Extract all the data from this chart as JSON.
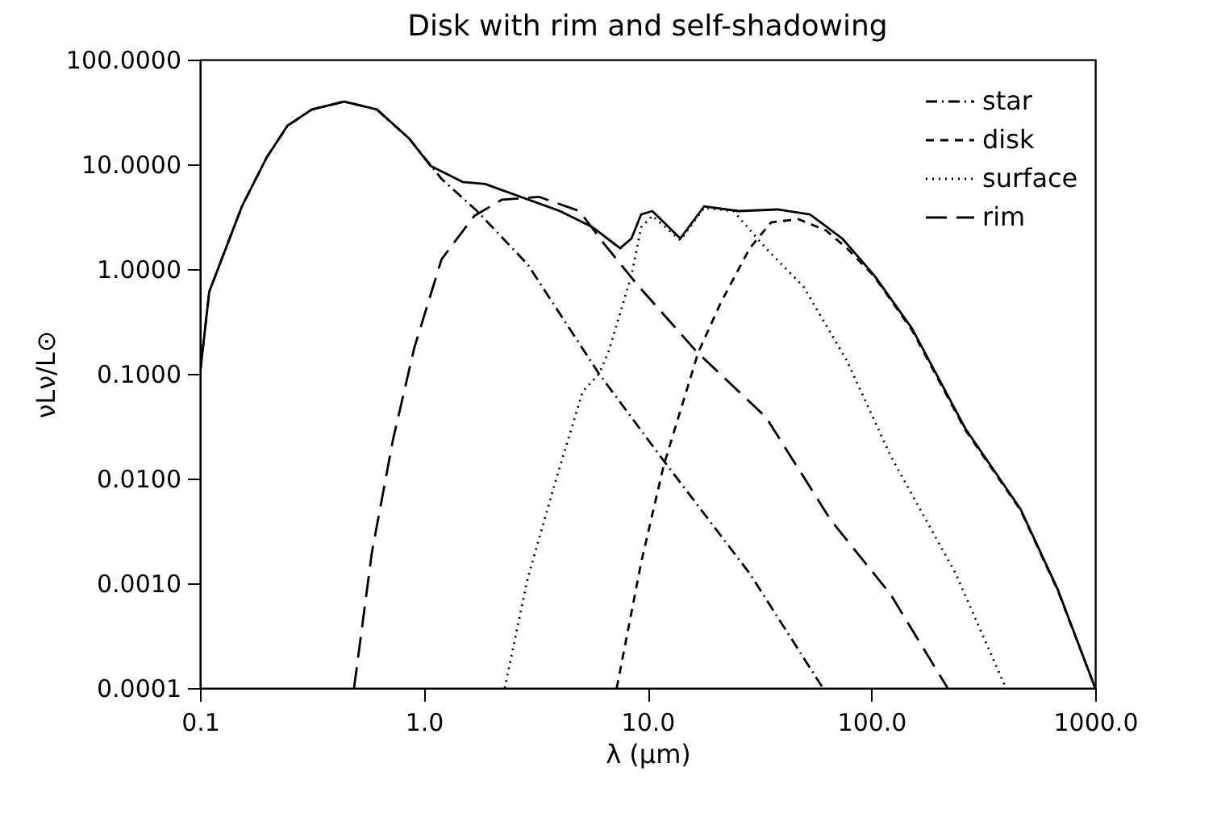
{
  "chart_data": {
    "type": "line",
    "title": "Disk with rim and self-shadowing",
    "xlabel": "λ (μm)",
    "ylabel": "νLν/L⊙",
    "log": "xy",
    "grid": false,
    "legend": "top right",
    "marker": "none",
    "xlim": [
      0.1,
      1000
    ],
    "xticks": [
      {
        "value": 0.1,
        "label": "0.1"
      },
      {
        "value": 1,
        "label": "1.0"
      },
      {
        "value": 10,
        "label": "10.0"
      },
      {
        "value": 100,
        "label": "100.0"
      },
      {
        "value": 1000,
        "label": "1000.0"
      }
    ],
    "ylim": [
      0.0001,
      100
    ],
    "yticks": [
      {
        "value": 100,
        "label": "100.0000"
      },
      {
        "value": 10,
        "label": "10.0000"
      },
      {
        "value": 1,
        "label": "1.0000"
      },
      {
        "value": 0.1,
        "label": "0.1000"
      },
      {
        "value": 0.01,
        "label": "0.0100"
      },
      {
        "value": 0.001,
        "label": "0.0010"
      },
      {
        "value": 0.0001,
        "label": "0.0001"
      }
    ],
    "series": [
      {
        "color": "#000000",
        "line_style": "solid",
        "x": [
          0.1,
          0.11,
          0.154,
          0.198,
          0.246,
          0.316,
          0.441,
          0.617,
          0.861,
          1.07,
          1.49,
          1.88,
          4.06,
          5.68,
          7.54,
          8.47,
          9.36,
          10.5,
          14.0,
          17.9,
          25.5,
          38.0,
          53.1,
          74.1,
          103,
          152,
          263,
          464,
          681,
          1000
        ],
        "values": [
          0.1,
          0.61,
          3.98,
          11.5,
          23.4,
          33.4,
          39.8,
          33.4,
          17.6,
          9.7,
          6.8,
          6.5,
          3.58,
          2.51,
          1.58,
          1.96,
          3.33,
          3.58,
          1.96,
          3.98,
          3.58,
          3.71,
          3.33,
          1.96,
          0.87,
          0.27,
          0.03,
          0.0051,
          0.00087,
          0.0001
        ]
      },
      {
        "name": "star",
        "color": "#000000",
        "line_style": "dashdot",
        "x": [
          0.1,
          0.11,
          0.154,
          0.198,
          0.246,
          0.316,
          0.441,
          0.617,
          0.861,
          1.2,
          1.73,
          2.91,
          6.07,
          11.8,
          28.6,
          60.7
        ],
        "values": [
          0.1,
          0.61,
          3.98,
          11.5,
          23.4,
          33.4,
          39.8,
          33.4,
          17.6,
          7.27,
          3.58,
          1.11,
          0.1,
          0.0148,
          0.00124,
          0.0001
        ]
      },
      {
        "name": "disk",
        "color": "#000000",
        "line_style": "dashed",
        "x": [
          7.28,
          9.36,
          11.8,
          16.8,
          21.2,
          28.6,
          35.6,
          47.2,
          62.7,
          77.8,
          103,
          152,
          263,
          464,
          681,
          1000
        ],
        "values": [
          0.0001,
          0.00158,
          0.0133,
          0.158,
          0.475,
          1.58,
          2.79,
          3.0,
          2.34,
          1.58,
          0.85,
          0.26,
          0.029,
          0.005,
          0.00085,
          0.0001
        ]
      },
      {
        "name": "surface",
        "color": "#000000",
        "line_style": "dotted",
        "x": [
          2.3,
          2.91,
          3.87,
          5.13,
          6.07,
          6.7,
          8.47,
          9.36,
          10.5,
          14.0,
          17.9,
          24.2,
          33.8,
          49.7,
          77.8,
          122,
          238,
          399
        ],
        "values": [
          0.0001,
          0.00111,
          0.0093,
          0.0678,
          0.1,
          0.164,
          0.87,
          2.51,
          3.22,
          1.89,
          3.85,
          3.58,
          1.58,
          0.68,
          0.133,
          0.0164,
          0.00124,
          0.0001
        ]
      },
      {
        "name": "rim",
        "color": "#000000",
        "line_style": "longdash",
        "x": [
          0.488,
          0.586,
          0.728,
          0.906,
          1.2,
          1.68,
          2.23,
          3.27,
          4.96,
          6.37,
          8.89,
          16.5,
          33.8,
          65.9,
          122,
          219
        ],
        "values": [
          0.0001,
          0.00196,
          0.0234,
          0.176,
          1.24,
          3.22,
          4.59,
          4.9,
          3.58,
          1.76,
          0.73,
          0.164,
          0.0385,
          0.004,
          0.00078,
          0.0001
        ]
      }
    ]
  }
}
